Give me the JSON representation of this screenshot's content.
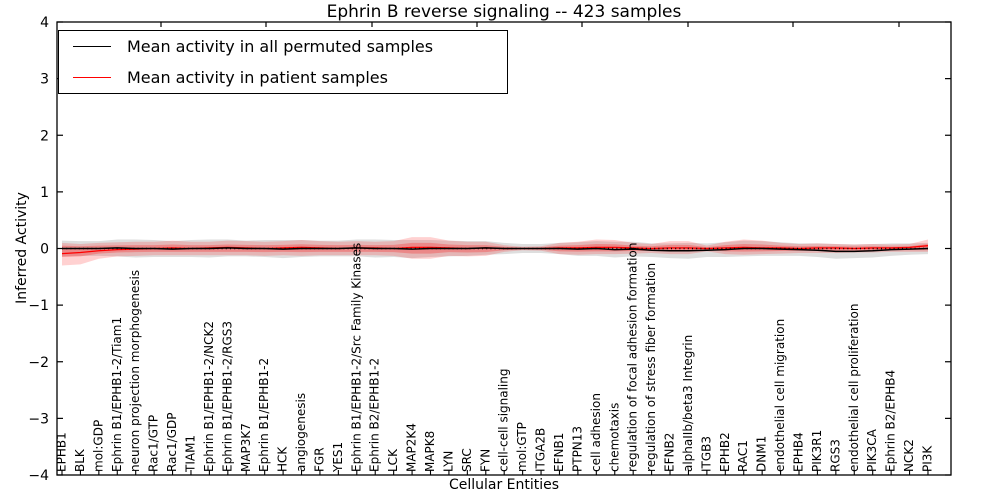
{
  "title": "Ephrin B reverse signaling -- 423 samples",
  "legend": {
    "items": [
      {
        "label": "Mean activity in all permuted samples",
        "color": "#000000"
      },
      {
        "label": "Mean activity in patient samples",
        "color": "#ff0000"
      }
    ]
  },
  "axes": {
    "x_label": "Cellular Entities",
    "y_label": "Inferred Activity",
    "y_ticks": [
      "4",
      "3",
      "2",
      "1",
      "0",
      "−1",
      "−2",
      "−3",
      "−4"
    ]
  },
  "chart_data": {
    "type": "line",
    "title": "Ephrin B reverse signaling -- 423 samples",
    "xlabel": "Cellular Entities",
    "ylabel": "Inferred Activity",
    "ylim": [
      -4,
      4
    ],
    "y_tick_step": 1,
    "legend_position": "upper left",
    "grid": false,
    "zero_line_style": "dotted",
    "categories": [
      "EPHB1",
      "BLK",
      "mol:GDP",
      "Ephrin B1/EPHB1-2/Tiam1",
      "neuron projection morphogenesis",
      "Rac1/GTP",
      "Rac1/GDP",
      "TIAM1",
      "Ephrin B1/EPHB1-2/NCK2",
      "Ephrin B1/EPHB1-2/RGS3",
      "MAP3K7",
      "Ephrin B1/EPHB1-2",
      "HCK",
      "angiogenesis",
      "FGR",
      "YES1",
      "Ephrin B1/EPHB1-2/Src Family Kinases",
      "Ephrin B2/EPHB1-2",
      "LCK",
      "MAP2K4",
      "MAPK8",
      "LYN",
      "SRC",
      "FYN",
      "cell-cell signaling",
      "mol:GTP",
      "ITGA2B",
      "EFNB1",
      "PTPN13",
      "cell adhesion",
      "chemotaxis",
      "regulation of focal adhesion formation",
      "regulation of stress fiber formation",
      "EFNB2",
      "alphaIIb/beta3 Integrin",
      "ITGB3",
      "EPHB2",
      "RAC1",
      "DNM1",
      "endothelial cell migration",
      "EPHB4",
      "PIK3R1",
      "RGS3",
      "endothelial cell proliferation",
      "PIK3CA",
      "Ephrin B2/EPHB4",
      "NCK2",
      "PI3K"
    ],
    "series": [
      {
        "name": "Mean activity in all permuted samples",
        "color": "#000000",
        "values": [
          0.0,
          0.0,
          0.0,
          0.01,
          0.0,
          0.0,
          -0.01,
          0.0,
          0.0,
          0.01,
          0.0,
          0.0,
          -0.01,
          0.0,
          0.0,
          0.0,
          0.01,
          0.0,
          0.0,
          -0.01,
          0.0,
          0.0,
          0.0,
          0.01,
          0.0,
          0.0,
          0.0,
          0.0,
          -0.01,
          0.0,
          -0.02,
          -0.01,
          -0.03,
          -0.04,
          -0.04,
          -0.03,
          -0.02,
          0.0,
          0.0,
          -0.01,
          -0.02,
          -0.03,
          -0.05,
          -0.05,
          -0.04,
          -0.02,
          -0.01,
          0.0
        ]
      },
      {
        "name": "Mean activity in patient samples",
        "color": "#ff0000",
        "values": [
          -0.09,
          -0.07,
          -0.04,
          -0.02,
          -0.01,
          0.0,
          0.01,
          0.0,
          0.01,
          0.02,
          0.01,
          0.0,
          0.01,
          0.02,
          0.01,
          0.0,
          0.01,
          0.01,
          0.0,
          0.02,
          0.02,
          0.01,
          0.0,
          0.01,
          0.0,
          0.0,
          0.0,
          0.01,
          0.01,
          0.02,
          0.02,
          0.01,
          0.0,
          0.01,
          0.01,
          0.0,
          0.01,
          0.02,
          0.01,
          0.01,
          0.0,
          0.01,
          0.01,
          0.0,
          0.01,
          0.01,
          0.02,
          0.05
        ]
      }
    ],
    "bands": [
      {
        "name": "permuted-std-band",
        "color": "#000000",
        "opacity": 0.13,
        "center_series": 0,
        "half_width": [
          0.14,
          0.13,
          0.13,
          0.15,
          0.16,
          0.15,
          0.14,
          0.15,
          0.16,
          0.15,
          0.14,
          0.15,
          0.16,
          0.15,
          0.14,
          0.14,
          0.15,
          0.16,
          0.15,
          0.16,
          0.15,
          0.14,
          0.13,
          0.12,
          0.1,
          0.08,
          0.08,
          0.1,
          0.12,
          0.13,
          0.14,
          0.13,
          0.12,
          0.13,
          0.14,
          0.12,
          0.13,
          0.14,
          0.13,
          0.12,
          0.11,
          0.12,
          0.13,
          0.12,
          0.12,
          0.11,
          0.1,
          0.1
        ]
      },
      {
        "name": "patient-std-band",
        "color": "#ff0000",
        "opacity": 0.18,
        "inner_band_scale": 0.5,
        "inner_band_opacity": 0.25,
        "upper": [
          0.1,
          0.08,
          0.1,
          0.11,
          0.12,
          0.12,
          0.14,
          0.12,
          0.12,
          0.14,
          0.13,
          0.12,
          0.13,
          0.15,
          0.13,
          0.12,
          0.13,
          0.12,
          0.13,
          0.2,
          0.2,
          0.14,
          0.12,
          0.12,
          0.06,
          0.03,
          0.04,
          0.1,
          0.12,
          0.16,
          0.15,
          0.1,
          0.08,
          0.13,
          0.13,
          0.05,
          0.12,
          0.16,
          0.14,
          0.1,
          0.08,
          0.09,
          0.08,
          0.07,
          0.08,
          0.07,
          0.08,
          0.16
        ],
        "lower": [
          -0.3,
          -0.28,
          -0.18,
          -0.14,
          -0.13,
          -0.12,
          -0.12,
          -0.12,
          -0.12,
          -0.12,
          -0.12,
          -0.13,
          -0.12,
          -0.13,
          -0.12,
          -0.12,
          -0.12,
          -0.12,
          -0.13,
          -0.18,
          -0.18,
          -0.13,
          -0.14,
          -0.13,
          -0.06,
          -0.03,
          -0.04,
          -0.1,
          -0.11,
          -0.1,
          -0.1,
          -0.09,
          -0.08,
          -0.1,
          -0.1,
          -0.05,
          -0.1,
          -0.11,
          -0.1,
          -0.09,
          -0.08,
          -0.08,
          -0.08,
          -0.07,
          -0.07,
          -0.06,
          -0.06,
          -0.06
        ]
      }
    ]
  }
}
